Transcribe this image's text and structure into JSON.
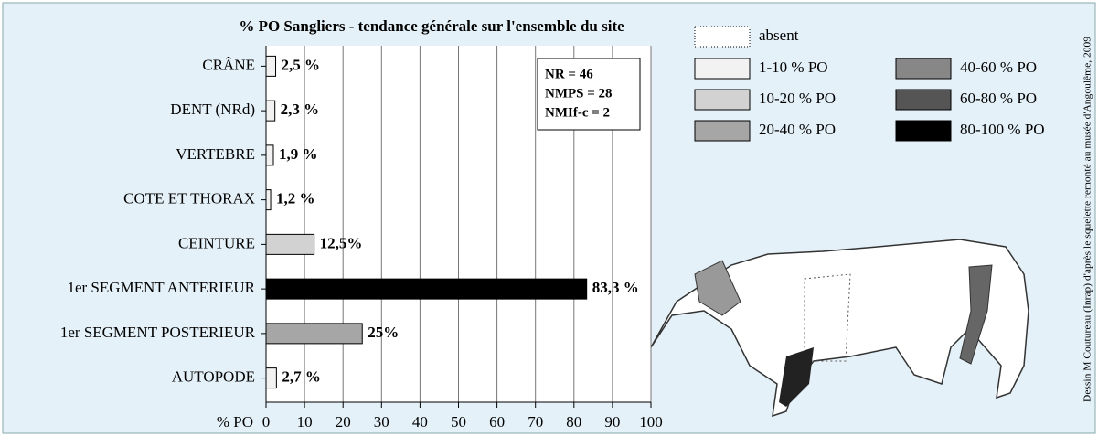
{
  "chart_data": {
    "type": "bar",
    "orientation": "horizontal",
    "title": "% PO Sangliers - tendance générale sur l'ensemble du site",
    "x_label": "% PO",
    "categories": [
      "CRÂNE",
      "DENT (NRd)",
      "VERTEBRE",
      "COTE ET THORAX",
      "CEINTURE",
      "1er SEGMENT ANTERIEUR",
      "1er SEGMENT POSTERIEUR",
      "AUTOPODE"
    ],
    "values": [
      2.5,
      2.3,
      1.9,
      1.2,
      12.5,
      83.3,
      25,
      2.7
    ],
    "value_labels": [
      "2,5 %",
      "2,3 %",
      "1,9 %",
      "1,2 %",
      "12,5%",
      "83,3 %",
      "25%",
      "2,7 %"
    ],
    "colors": [
      "#f2f2f2",
      "#f2f2f2",
      "#f2f2f2",
      "#f2f2f2",
      "#d2d2d2",
      "#000000",
      "#a6a6a6",
      "#f2f2f2"
    ],
    "xlim": [
      0,
      100
    ],
    "xticks": [
      0,
      10,
      20,
      30,
      40,
      50,
      60,
      70,
      80,
      90,
      100
    ],
    "grid": true,
    "annotation": [
      "NR = 46",
      "NMPS = 28",
      "NMIf-c = 2"
    ],
    "legend": [
      {
        "label": "absent",
        "color": "#ffffff"
      },
      {
        "label": "1-10 % PO",
        "color": "#f2f2f2"
      },
      {
        "label": "10-20 % PO",
        "color": "#d2d2d2"
      },
      {
        "label": "20-40 % PO",
        "color": "#a6a6a6"
      },
      {
        "label": "40-60 % PO",
        "color": "#878787"
      },
      {
        "label": "60-80 % PO",
        "color": "#555555"
      },
      {
        "label": "80-100 % PO",
        "color": "#000000"
      }
    ],
    "credit": "Dessin M Coutureau (Inrap) d'après le squelette remonté au musée d'Angoulême, 2009"
  }
}
